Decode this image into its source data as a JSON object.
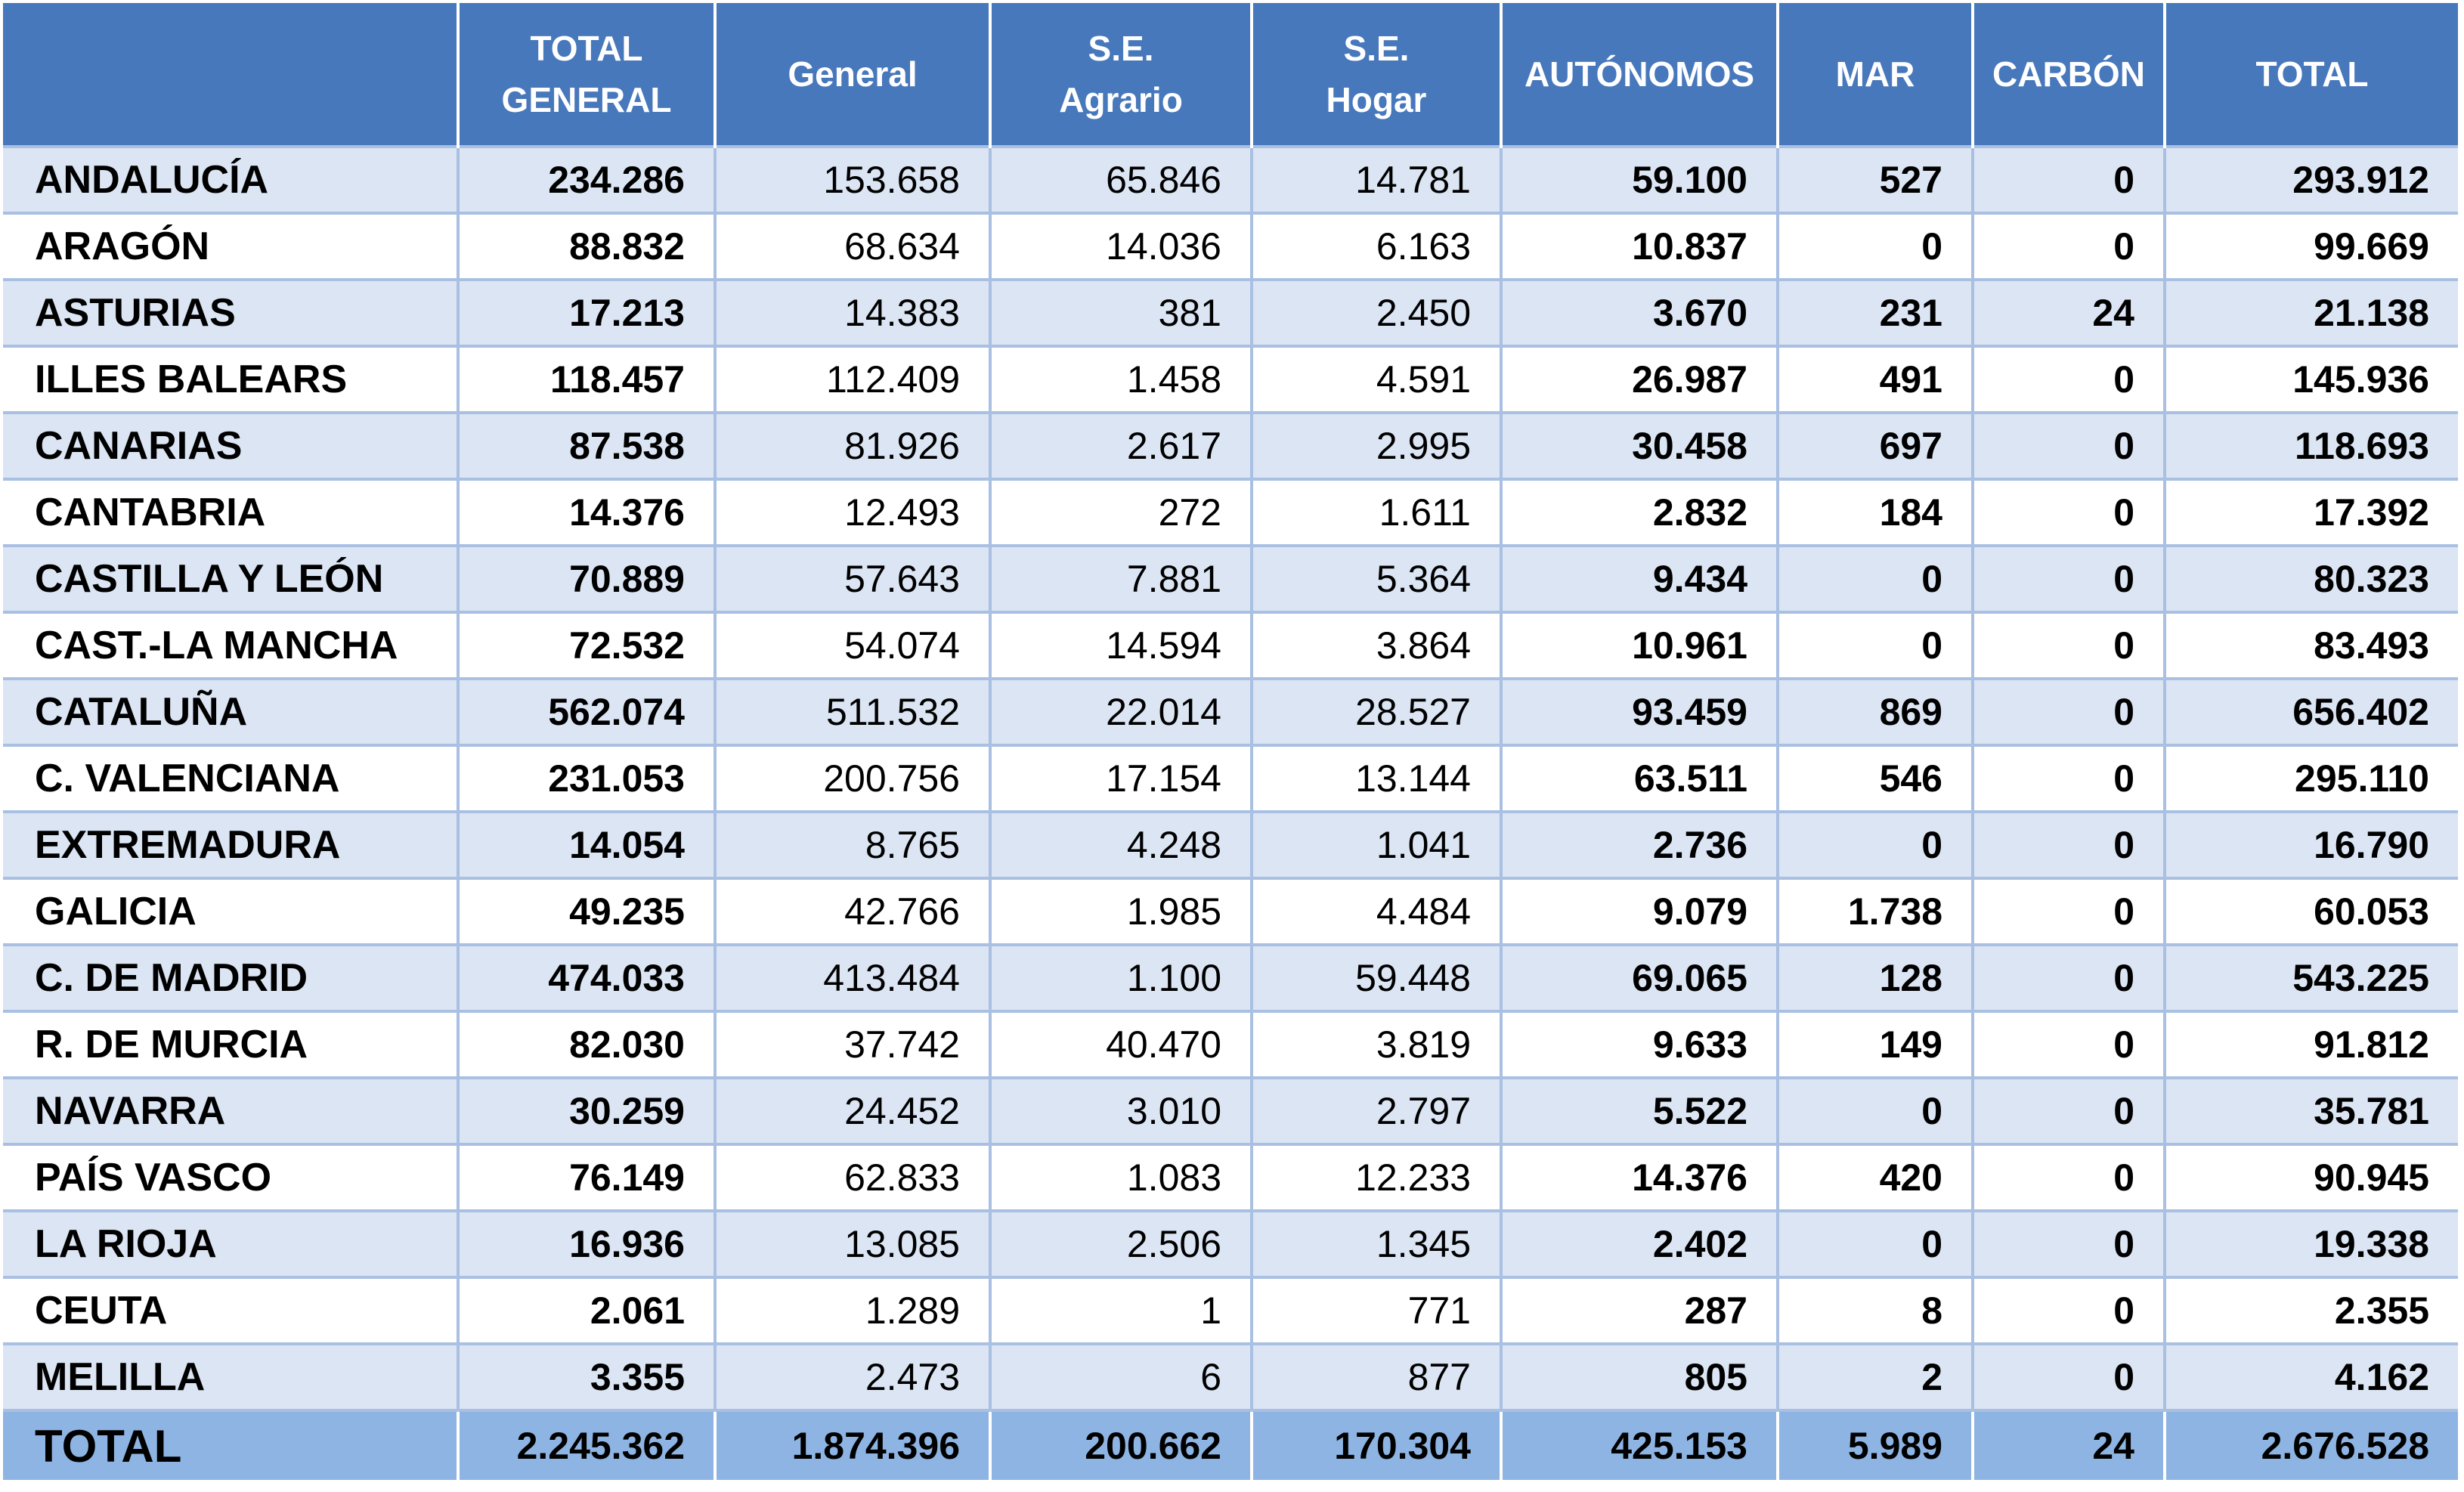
{
  "table": {
    "columns": [
      {
        "key": "region",
        "label": ""
      },
      {
        "key": "total_general",
        "label": "TOTAL GENERAL",
        "lines": [
          "TOTAL",
          "GENERAL"
        ]
      },
      {
        "key": "general",
        "label": "General"
      },
      {
        "key": "se_agrario",
        "label": "S.E. Agrario",
        "lines": [
          "S.E.",
          "Agrario"
        ]
      },
      {
        "key": "se_hogar",
        "label": "S.E. Hogar",
        "lines": [
          "S.E.",
          "Hogar"
        ]
      },
      {
        "key": "autonomos",
        "label": "AUTÓNOMOS"
      },
      {
        "key": "mar",
        "label": "MAR"
      },
      {
        "key": "carbon",
        "label": "CARBÓN"
      },
      {
        "key": "total",
        "label": "TOTAL"
      }
    ],
    "rows": [
      {
        "region": "ANDALUCÍA",
        "total_general": "234.286",
        "general": "153.658",
        "se_agrario": "65.846",
        "se_hogar": "14.781",
        "autonomos": "59.100",
        "mar": "527",
        "carbon": "0",
        "total": "293.912"
      },
      {
        "region": "ARAGÓN",
        "total_general": "88.832",
        "general": "68.634",
        "se_agrario": "14.036",
        "se_hogar": "6.163",
        "autonomos": "10.837",
        "mar": "0",
        "carbon": "0",
        "total": "99.669"
      },
      {
        "region": "ASTURIAS",
        "total_general": "17.213",
        "general": "14.383",
        "se_agrario": "381",
        "se_hogar": "2.450",
        "autonomos": "3.670",
        "mar": "231",
        "carbon": "24",
        "total": "21.138"
      },
      {
        "region": "ILLES BALEARS",
        "total_general": "118.457",
        "general": "112.409",
        "se_agrario": "1.458",
        "se_hogar": "4.591",
        "autonomos": "26.987",
        "mar": "491",
        "carbon": "0",
        "total": "145.936"
      },
      {
        "region": "CANARIAS",
        "total_general": "87.538",
        "general": "81.926",
        "se_agrario": "2.617",
        "se_hogar": "2.995",
        "autonomos": "30.458",
        "mar": "697",
        "carbon": "0",
        "total": "118.693"
      },
      {
        "region": "CANTABRIA",
        "total_general": "14.376",
        "general": "12.493",
        "se_agrario": "272",
        "se_hogar": "1.611",
        "autonomos": "2.832",
        "mar": "184",
        "carbon": "0",
        "total": "17.392"
      },
      {
        "region": "CASTILLA Y LEÓN",
        "total_general": "70.889",
        "general": "57.643",
        "se_agrario": "7.881",
        "se_hogar": "5.364",
        "autonomos": "9.434",
        "mar": "0",
        "carbon": "0",
        "total": "80.323"
      },
      {
        "region": "CAST.-LA MANCHA",
        "total_general": "72.532",
        "general": "54.074",
        "se_agrario": "14.594",
        "se_hogar": "3.864",
        "autonomos": "10.961",
        "mar": "0",
        "carbon": "0",
        "total": "83.493"
      },
      {
        "region": "CATALUÑA",
        "total_general": "562.074",
        "general": "511.532",
        "se_agrario": "22.014",
        "se_hogar": "28.527",
        "autonomos": "93.459",
        "mar": "869",
        "carbon": "0",
        "total": "656.402"
      },
      {
        "region": "C. VALENCIANA",
        "total_general": "231.053",
        "general": "200.756",
        "se_agrario": "17.154",
        "se_hogar": "13.144",
        "autonomos": "63.511",
        "mar": "546",
        "carbon": "0",
        "total": "295.110"
      },
      {
        "region": "EXTREMADURA",
        "total_general": "14.054",
        "general": "8.765",
        "se_agrario": "4.248",
        "se_hogar": "1.041",
        "autonomos": "2.736",
        "mar": "0",
        "carbon": "0",
        "total": "16.790"
      },
      {
        "region": "GALICIA",
        "total_general": "49.235",
        "general": "42.766",
        "se_agrario": "1.985",
        "se_hogar": "4.484",
        "autonomos": "9.079",
        "mar": "1.738",
        "carbon": "0",
        "total": "60.053"
      },
      {
        "region": "C. DE MADRID",
        "total_general": "474.033",
        "general": "413.484",
        "se_agrario": "1.100",
        "se_hogar": "59.448",
        "autonomos": "69.065",
        "mar": "128",
        "carbon": "0",
        "total": "543.225"
      },
      {
        "region": "R. DE MURCIA",
        "total_general": "82.030",
        "general": "37.742",
        "se_agrario": "40.470",
        "se_hogar": "3.819",
        "autonomos": "9.633",
        "mar": "149",
        "carbon": "0",
        "total": "91.812"
      },
      {
        "region": "NAVARRA",
        "total_general": "30.259",
        "general": "24.452",
        "se_agrario": "3.010",
        "se_hogar": "2.797",
        "autonomos": "5.522",
        "mar": "0",
        "carbon": "0",
        "total": "35.781"
      },
      {
        "region": "PAÍS VASCO",
        "total_general": "76.149",
        "general": "62.833",
        "se_agrario": "1.083",
        "se_hogar": "12.233",
        "autonomos": "14.376",
        "mar": "420",
        "carbon": "0",
        "total": "90.945"
      },
      {
        "region": "LA RIOJA",
        "total_general": "16.936",
        "general": "13.085",
        "se_agrario": "2.506",
        "se_hogar": "1.345",
        "autonomos": "2.402",
        "mar": "0",
        "carbon": "0",
        "total": "19.338"
      },
      {
        "region": "CEUTA",
        "total_general": "2.061",
        "general": "1.289",
        "se_agrario": "1",
        "se_hogar": "771",
        "autonomos": "287",
        "mar": "8",
        "carbon": "0",
        "total": "2.355"
      },
      {
        "region": "MELILLA",
        "total_general": "3.355",
        "general": "2.473",
        "se_agrario": "6",
        "se_hogar": "877",
        "autonomos": "805",
        "mar": "2",
        "carbon": "0",
        "total": "4.162"
      }
    ],
    "footer": {
      "region": "TOTAL",
      "total_general": "2.245.362",
      "general": "1.874.396",
      "se_agrario": "200.662",
      "se_hogar": "170.304",
      "autonomos": "425.153",
      "mar": "5.989",
      "carbon": "24",
      "total": "2.676.528"
    }
  },
  "colors": {
    "header_bg": "#4878bc",
    "header_text": "#ffffff",
    "row_band": "#dbe5f3",
    "row_plain": "#ffffff",
    "footer_bg": "#8db4e2",
    "grid_line": "#a9c0e2"
  }
}
